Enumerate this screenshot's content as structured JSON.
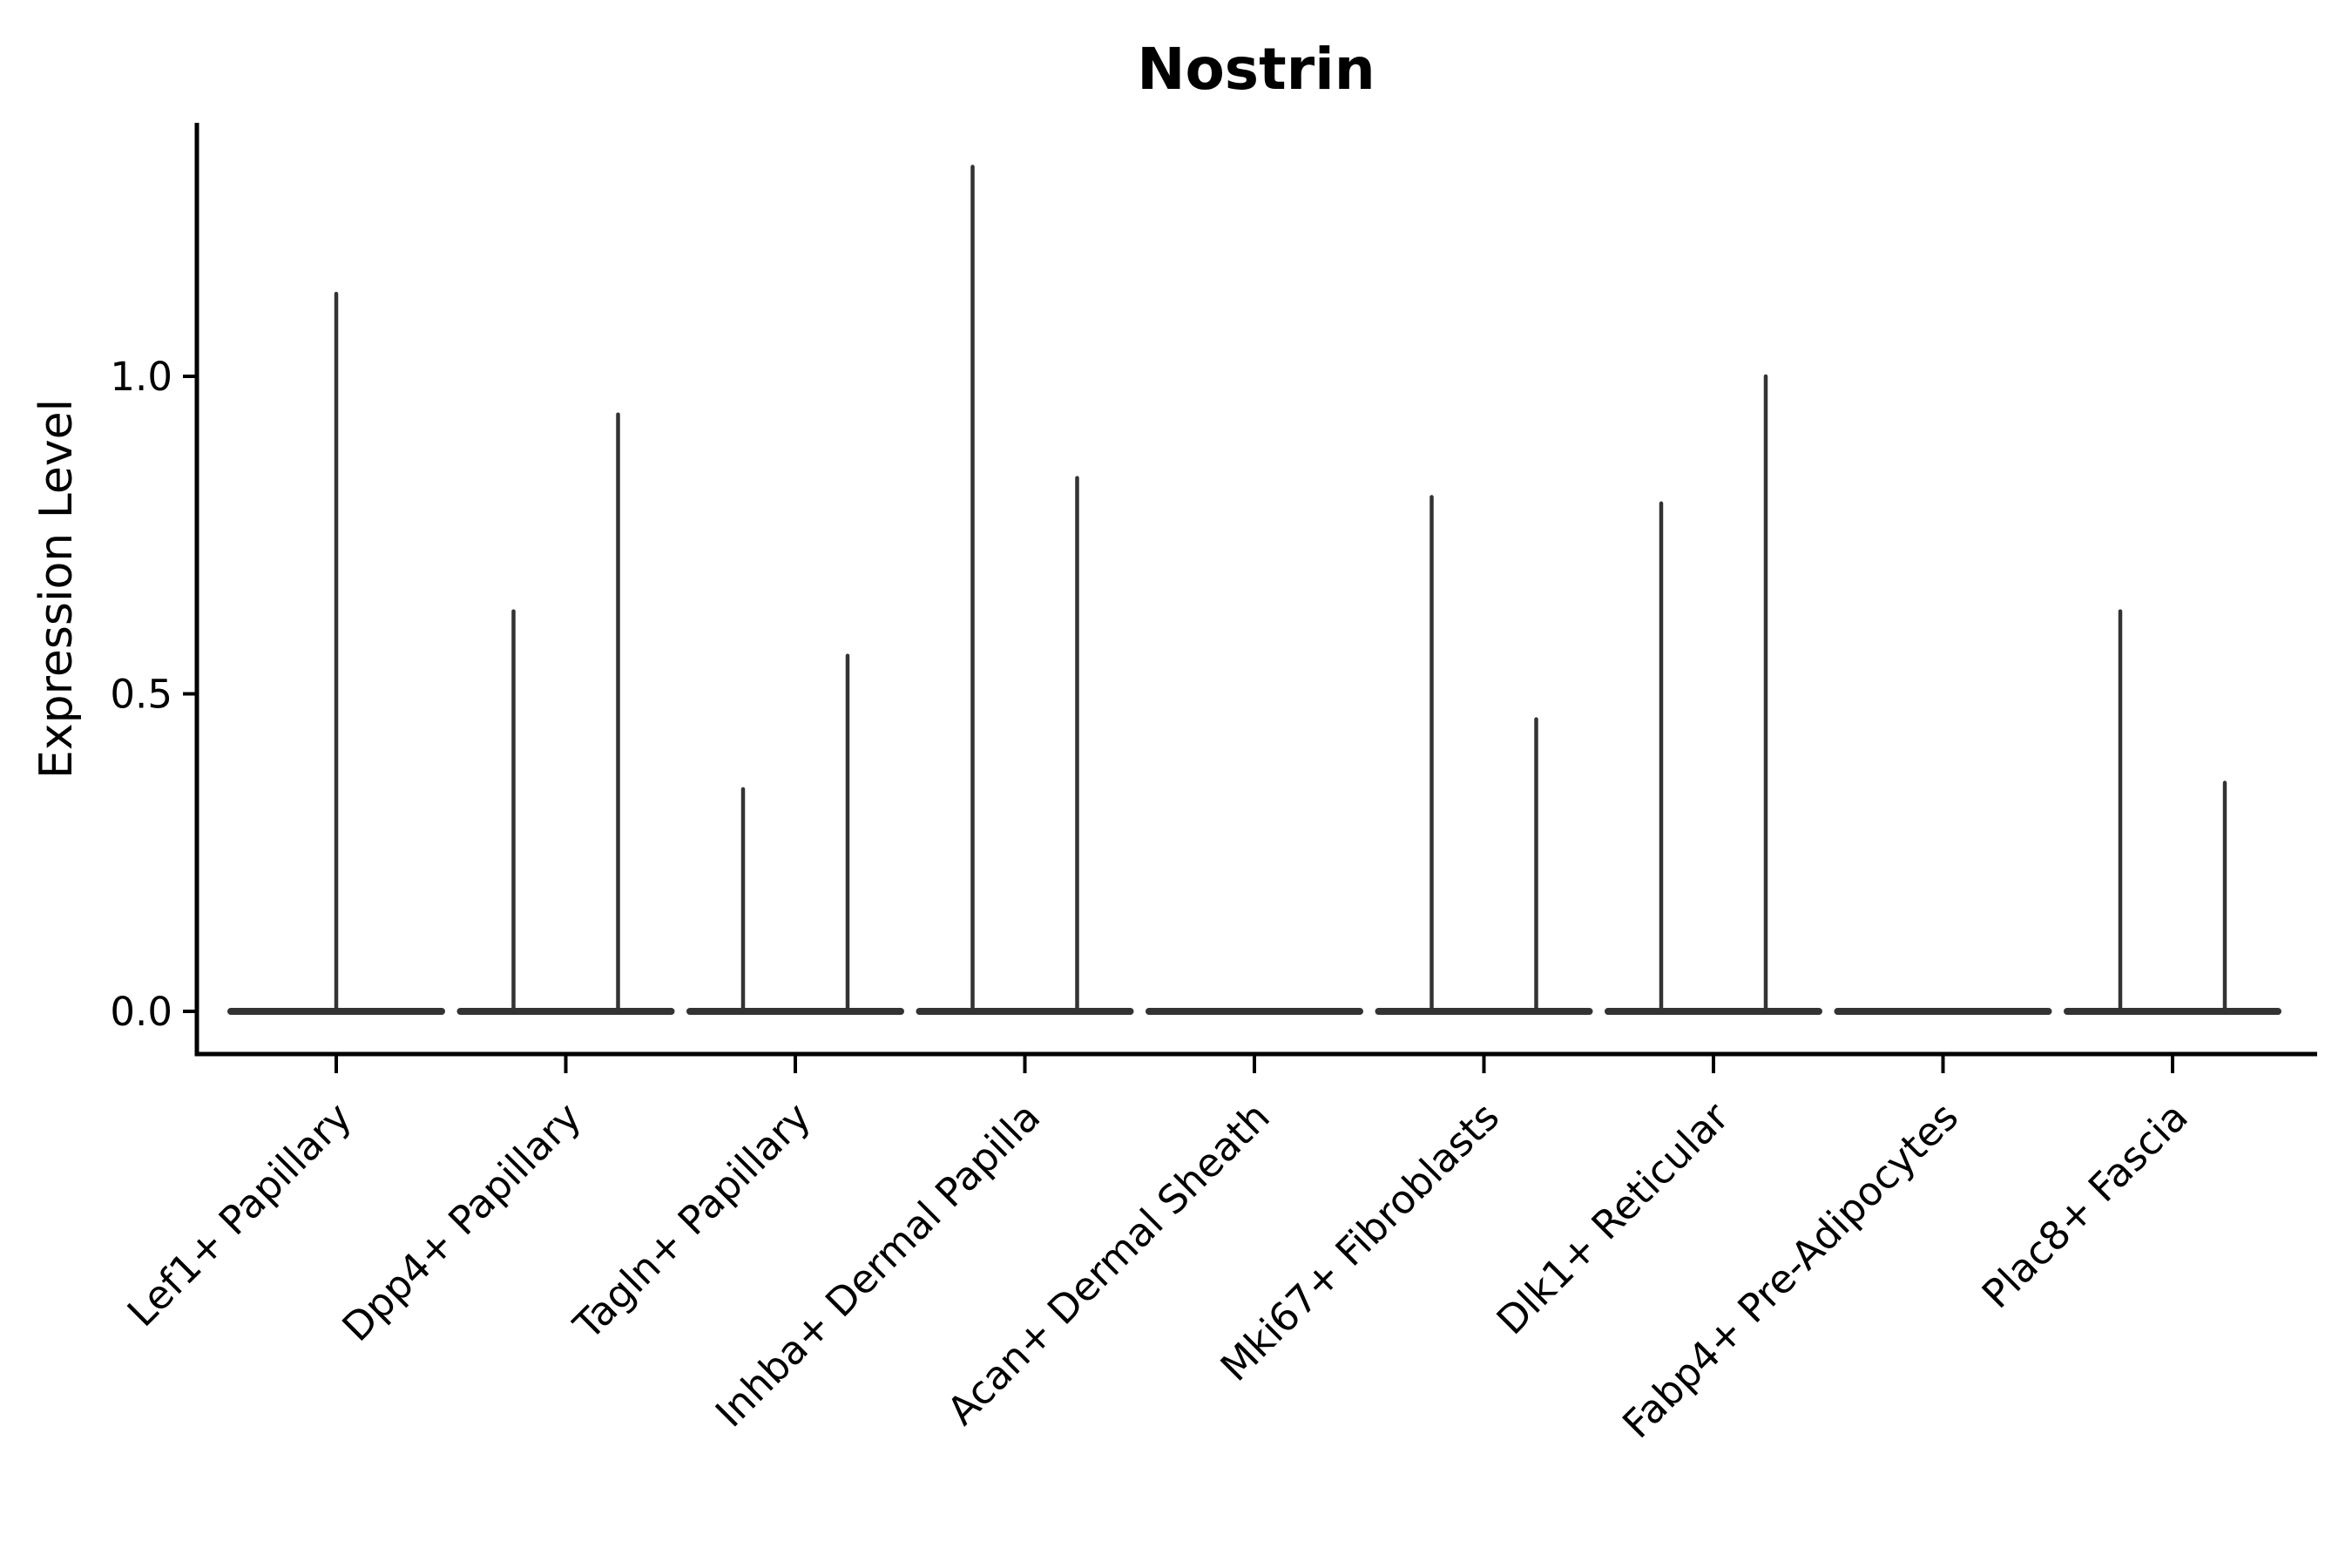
{
  "chart_data": {
    "type": "violin",
    "title": "Nostrin",
    "ylabel": "Expression Level",
    "xlabel": "",
    "categories": [
      "Lef1+ Papillary",
      "Dpp4+ Papillary",
      "Tagln+ Papillary",
      "Inhba+ Dermal Papilla",
      "Acan+ Dermal Sheath",
      "Mki67+ Fibroblasts",
      "Dlk1+ Reticular",
      "Fabp4+ Pre-Adipocytes",
      "Plac8+ Fascia"
    ],
    "series": [
      {
        "category": "Lef1+ Papillary",
        "violin_count": 1,
        "spike_maxima": [
          1.13
        ]
      },
      {
        "category": "Dpp4+ Papillary",
        "violin_count": 2,
        "spike_maxima": [
          0.63,
          0.94
        ]
      },
      {
        "category": "Tagln+ Papillary",
        "violin_count": 2,
        "spike_maxima": [
          0.35,
          0.56
        ]
      },
      {
        "category": "Inhba+ Dermal Papilla",
        "violin_count": 2,
        "spike_maxima": [
          1.33,
          0.84
        ]
      },
      {
        "category": "Acan+ Dermal Sheath",
        "violin_count": 1,
        "spike_maxima": []
      },
      {
        "category": "Mki67+ Fibroblasts",
        "violin_count": 2,
        "spike_maxima": [
          0.81,
          0.46
        ]
      },
      {
        "category": "Dlk1+ Reticular",
        "violin_count": 2,
        "spike_maxima": [
          0.8,
          1.0
        ]
      },
      {
        "category": "Fabp4+ Pre-Adipocytes",
        "violin_count": 1,
        "spike_maxima": []
      },
      {
        "category": "Plac8+ Fascia",
        "violin_count": 2,
        "spike_maxima": [
          0.63,
          0.36
        ]
      }
    ],
    "baseline_value": 0.0,
    "yticks": [
      {
        "value": 0.0,
        "label": "0.0"
      },
      {
        "value": 0.5,
        "label": "0.5"
      },
      {
        "value": 1.0,
        "label": "1.0"
      }
    ],
    "ylim": [
      0,
      1.4
    ],
    "grid": false,
    "legend": null,
    "x_tick_rotation_deg": 45,
    "colors": {
      "violin": "#333333",
      "axis": "#000000",
      "text": "#000000",
      "background": "#ffffff"
    }
  }
}
